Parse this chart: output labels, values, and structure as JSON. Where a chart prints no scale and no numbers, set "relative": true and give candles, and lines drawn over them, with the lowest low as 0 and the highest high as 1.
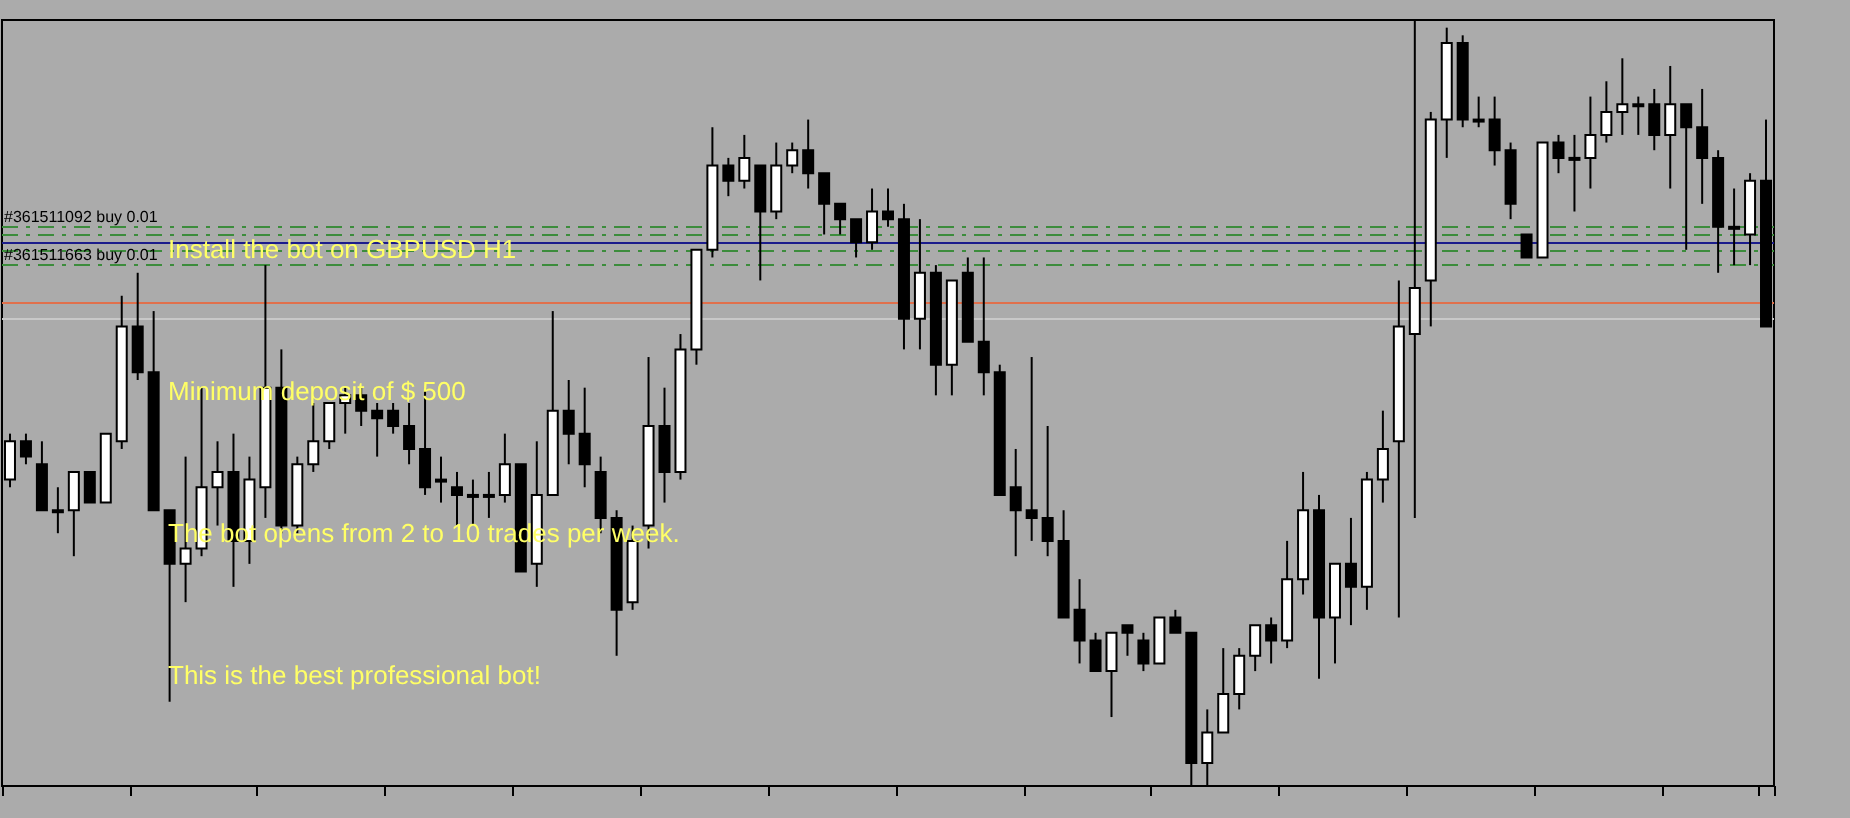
{
  "chart_data": {
    "type": "candlestick",
    "relative": true,
    "categories": [
      null,
      null,
      null,
      null,
      null,
      null,
      null,
      null,
      null,
      null,
      null,
      null,
      null,
      null,
      null,
      null,
      null,
      null,
      null,
      null,
      null,
      null,
      null,
      null,
      null,
      null,
      null,
      null,
      null,
      null,
      null,
      null,
      null,
      null,
      null,
      null,
      null,
      null,
      null,
      null,
      null,
      null,
      null,
      null,
      null,
      null,
      null,
      null,
      null,
      null,
      null,
      null,
      null,
      null,
      null,
      null,
      null,
      null,
      null,
      null,
      null,
      null,
      null,
      null,
      null,
      null,
      null,
      null,
      null,
      null,
      null,
      null,
      null,
      null,
      null,
      null,
      null,
      null,
      null,
      null,
      null,
      null,
      null,
      null,
      null,
      null,
      null,
      null,
      null,
      null,
      null,
      null,
      null,
      null,
      null,
      null,
      null,
      null,
      null,
      null,
      null,
      null,
      null,
      null,
      null,
      null,
      null,
      null,
      null,
      null,
      null
    ],
    "ohlc": [
      [
        0.4,
        0.46,
        0.39,
        0.45
      ],
      [
        0.45,
        0.46,
        0.42,
        0.43
      ],
      [
        0.42,
        0.45,
        0.36,
        0.36
      ],
      [
        0.36,
        0.39,
        0.33,
        0.36
      ],
      [
        0.36,
        0.41,
        0.3,
        0.41
      ],
      [
        0.41,
        0.41,
        0.37,
        0.37
      ],
      [
        0.37,
        0.46,
        0.37,
        0.46
      ],
      [
        0.45,
        0.64,
        0.44,
        0.6
      ],
      [
        0.6,
        0.67,
        0.53,
        0.54
      ],
      [
        0.54,
        0.62,
        0.36,
        0.36
      ],
      [
        0.36,
        0.36,
        0.11,
        0.29
      ],
      [
        0.29,
        0.43,
        0.24,
        0.31
      ],
      [
        0.31,
        0.52,
        0.3,
        0.39
      ],
      [
        0.39,
        0.45,
        0.34,
        0.41
      ],
      [
        0.41,
        0.46,
        0.26,
        0.32
      ],
      [
        0.32,
        0.43,
        0.29,
        0.4
      ],
      [
        0.39,
        0.68,
        0.35,
        0.52
      ],
      [
        0.52,
        0.57,
        0.33,
        0.34
      ],
      [
        0.34,
        0.43,
        0.33,
        0.42
      ],
      [
        0.42,
        0.5,
        0.41,
        0.45
      ],
      [
        0.45,
        0.5,
        0.44,
        0.5
      ],
      [
        0.5,
        0.52,
        0.46,
        0.51
      ],
      [
        0.51,
        0.52,
        0.47,
        0.49
      ],
      [
        0.49,
        0.5,
        0.43,
        0.48
      ],
      [
        0.49,
        0.5,
        0.46,
        0.47
      ],
      [
        0.47,
        0.5,
        0.42,
        0.44
      ],
      [
        0.44,
        0.52,
        0.38,
        0.39
      ],
      [
        0.4,
        0.43,
        0.37,
        0.4
      ],
      [
        0.39,
        0.41,
        0.34,
        0.38
      ],
      [
        0.38,
        0.4,
        0.34,
        0.38
      ],
      [
        0.38,
        0.41,
        0.35,
        0.38
      ],
      [
        0.38,
        0.46,
        0.37,
        0.42
      ],
      [
        0.42,
        0.42,
        0.28,
        0.28
      ],
      [
        0.29,
        0.45,
        0.26,
        0.38
      ],
      [
        0.38,
        0.62,
        0.38,
        0.49
      ],
      [
        0.49,
        0.53,
        0.42,
        0.46
      ],
      [
        0.46,
        0.52,
        0.39,
        0.42
      ],
      [
        0.41,
        0.43,
        0.33,
        0.35
      ],
      [
        0.35,
        0.36,
        0.17,
        0.23
      ],
      [
        0.24,
        0.34,
        0.23,
        0.32
      ],
      [
        0.34,
        0.56,
        0.31,
        0.47
      ],
      [
        0.47,
        0.52,
        0.37,
        0.41
      ],
      [
        0.41,
        0.59,
        0.4,
        0.57
      ],
      [
        0.57,
        0.7,
        0.55,
        0.7
      ],
      [
        0.7,
        0.86,
        0.69,
        0.81
      ],
      [
        0.81,
        0.82,
        0.77,
        0.79
      ],
      [
        0.79,
        0.85,
        0.78,
        0.82
      ],
      [
        0.81,
        0.81,
        0.66,
        0.75
      ],
      [
        0.75,
        0.84,
        0.74,
        0.81
      ],
      [
        0.81,
        0.84,
        0.8,
        0.83
      ],
      [
        0.83,
        0.87,
        0.78,
        0.8
      ],
      [
        0.8,
        0.8,
        0.72,
        0.76
      ],
      [
        0.76,
        0.76,
        0.72,
        0.74
      ],
      [
        0.74,
        0.74,
        0.69,
        0.71
      ],
      [
        0.71,
        0.78,
        0.7,
        0.75
      ],
      [
        0.75,
        0.78,
        0.73,
        0.74
      ],
      [
        0.74,
        0.76,
        0.57,
        0.61
      ],
      [
        0.61,
        0.74,
        0.57,
        0.67
      ],
      [
        0.67,
        0.68,
        0.51,
        0.55
      ],
      [
        0.55,
        0.66,
        0.51,
        0.66
      ],
      [
        0.67,
        0.69,
        0.58,
        0.58
      ],
      [
        0.58,
        0.69,
        0.51,
        0.54
      ],
      [
        0.54,
        0.55,
        0.38,
        0.38
      ],
      [
        0.39,
        0.44,
        0.3,
        0.36
      ],
      [
        0.36,
        0.56,
        0.32,
        0.35
      ],
      [
        0.35,
        0.47,
        0.3,
        0.32
      ],
      [
        0.32,
        0.36,
        0.22,
        0.22
      ],
      [
        0.23,
        0.27,
        0.16,
        0.19
      ],
      [
        0.19,
        0.2,
        0.15,
        0.15
      ],
      [
        0.15,
        0.2,
        0.09,
        0.2
      ],
      [
        0.21,
        0.21,
        0.17,
        0.2
      ],
      [
        0.19,
        0.2,
        0.15,
        0.16
      ],
      [
        0.16,
        0.22,
        0.16,
        0.22
      ],
      [
        0.22,
        0.23,
        0.2,
        0.2
      ],
      [
        0.2,
        0.2,
        0,
        0.03
      ],
      [
        0.03,
        0.1,
        0,
        0.07
      ],
      [
        0.07,
        0.18,
        0.07,
        0.12
      ],
      [
        0.12,
        0.18,
        0.1,
        0.17
      ],
      [
        0.17,
        0.21,
        0.15,
        0.21
      ],
      [
        0.21,
        0.22,
        0.16,
        0.19
      ],
      [
        0.19,
        0.32,
        0.18,
        0.27
      ],
      [
        0.27,
        0.41,
        0.25,
        0.36
      ],
      [
        0.36,
        0.38,
        0.14,
        0.22
      ],
      [
        0.22,
        0.29,
        0.16,
        0.29
      ],
      [
        0.29,
        0.35,
        0.21,
        0.26
      ],
      [
        0.26,
        0.41,
        0.23,
        0.4
      ],
      [
        0.4,
        0.49,
        0.37,
        0.44
      ],
      [
        0.45,
        0.66,
        0.22,
        0.6
      ],
      [
        0.59,
        1,
        0.35,
        0.65
      ],
      [
        0.66,
        0.88,
        0.6,
        0.87
      ],
      [
        0.87,
        0.99,
        0.82,
        0.97
      ],
      [
        0.97,
        0.98,
        0.86,
        0.87
      ],
      [
        0.87,
        0.9,
        0.86,
        0.87
      ],
      [
        0.87,
        0.9,
        0.81,
        0.83
      ],
      [
        0.83,
        0.84,
        0.74,
        0.76
      ],
      [
        0.72,
        0.72,
        0.69,
        0.69
      ],
      [
        0.69,
        0.84,
        0.69,
        0.84
      ],
      [
        0.84,
        0.85,
        0.8,
        0.82
      ],
      [
        0.82,
        0.85,
        0.75,
        0.82
      ],
      [
        0.82,
        0.9,
        0.78,
        0.85
      ],
      [
        0.85,
        0.92,
        0.84,
        0.88
      ],
      [
        0.88,
        0.95,
        0.85,
        0.89
      ],
      [
        0.89,
        0.9,
        0.85,
        0.89
      ],
      [
        0.89,
        0.91,
        0.83,
        0.85
      ],
      [
        0.85,
        0.94,
        0.78,
        0.89
      ],
      [
        0.89,
        0.89,
        0.7,
        0.86
      ],
      [
        0.86,
        0.91,
        0.76,
        0.82
      ],
      [
        0.82,
        0.83,
        0.67,
        0.73
      ],
      [
        0.73,
        0.78,
        0.68,
        0.73
      ],
      [
        0.72,
        0.8,
        0.68,
        0.79
      ],
      [
        0.79,
        0.87,
        0.6,
        0.6
      ]
    ],
    "ref_lines": [
      {
        "axis": "y",
        "value": 0.73,
        "label": "#361511092 buy 0.01",
        "color": "#3c8c3c",
        "line_style": "dashed"
      },
      {
        "axis": "y",
        "value": 0.72,
        "label": null,
        "color": "#3c8c3c",
        "line_style": "dashed"
      },
      {
        "axis": "y",
        "value": 0.71,
        "label": null,
        "color": "#1c1c8c",
        "line_style": "solid"
      },
      {
        "axis": "y",
        "value": 0.7,
        "label": null,
        "color": "#3c8c3c",
        "line_style": "dashed"
      },
      {
        "axis": "y",
        "value": 0.68,
        "label": "#361511663 buy 0.01",
        "color": "#3c8c3c",
        "line_style": "dashed"
      },
      {
        "axis": "y",
        "value": 0.63,
        "label": null,
        "color": "#e0704c",
        "line_style": "solid"
      },
      {
        "axis": "y",
        "value": 0.61,
        "label": null,
        "color": "#c8c8c8",
        "line_style": "solid"
      }
    ],
    "annotations": [
      "Install the bot on GBPUSD H1",
      "Minimum deposit of $ 500",
      "The bot opens from 2 to 10 trades per week.",
      "This is the best professional bot!"
    ]
  }
}
